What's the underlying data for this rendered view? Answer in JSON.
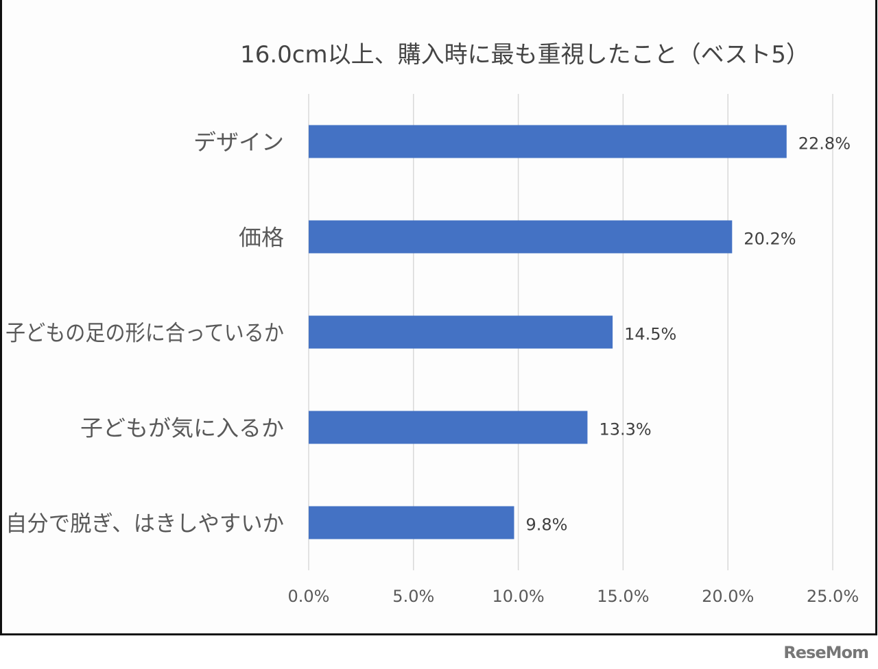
{
  "chart_data": {
    "type": "bar",
    "orientation": "horizontal",
    "title": "16.0cm以上、購入時に最も重視したこと（ベスト5）",
    "categories": [
      "デザイン",
      "価格",
      "子どもの足の形に合っているか",
      "子どもが気に入るか",
      "自分で脱ぎ、はきしやすいか"
    ],
    "values": [
      22.8,
      20.2,
      14.5,
      13.3,
      9.8
    ],
    "data_labels": [
      "22.8%",
      "20.2%",
      "14.5%",
      "13.3%",
      "9.8%"
    ],
    "xlim": [
      0,
      25
    ],
    "xticks": [
      0,
      5,
      10,
      15,
      20,
      25
    ],
    "xtick_labels": [
      "0.0%",
      "5.0%",
      "10.0%",
      "15.0%",
      "20.0%",
      "25.0%"
    ],
    "grid": "vertical",
    "bar_color": "#4472C4"
  },
  "logo": "ReseMom"
}
